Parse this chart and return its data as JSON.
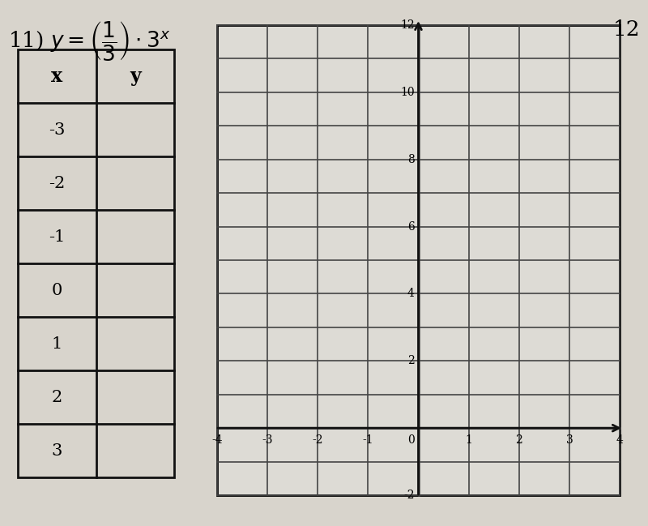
{
  "table_x_values": [
    -3,
    -2,
    -1,
    0,
    1,
    2,
    3
  ],
  "x_min": -4,
  "x_max": 4,
  "y_min": -2,
  "y_max": 12,
  "paper_color": "#d8d4cc",
  "graph_bg_color": "#dddbd5",
  "grid_color": "#444444",
  "axis_color": "#111111",
  "table_border_color": "#111111",
  "formula_fontsize": 19,
  "table_header_fontsize": 17,
  "table_cell_fontsize": 15,
  "tick_label_fontsize": 10,
  "corner_number": "12"
}
